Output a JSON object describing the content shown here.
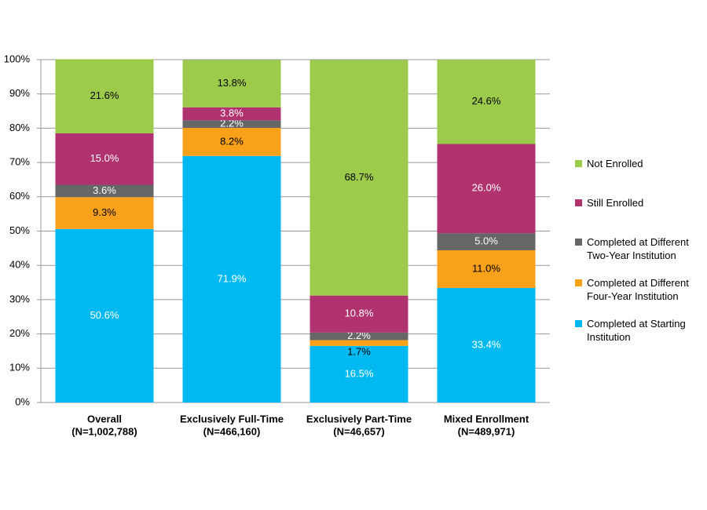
{
  "chart_data": {
    "type": "stacked_bar",
    "categories": [
      [
        "Overall",
        "(N=1,002,788)"
      ],
      [
        "Exclusively Full-Time",
        "(N=466,160)"
      ],
      [
        "Exclusively Part-Time",
        "(N=46,657)"
      ],
      [
        "Mixed Enrollment",
        "(N=489,971)"
      ]
    ],
    "series": [
      {
        "name": "Completed at Starting Institution",
        "color": "#00b9f1",
        "label_color": "#ffffff",
        "values": [
          50.6,
          71.9,
          16.5,
          33.4
        ],
        "value_labels": [
          "50.6%",
          "71.9%",
          "16.5%",
          "33.4%"
        ]
      },
      {
        "name": "Completed at Different Four-Year Institution",
        "color": "#f9a11b",
        "label_color": "#000000",
        "values": [
          9.3,
          8.2,
          1.7,
          11.0
        ],
        "value_labels": [
          "9.3%",
          "8.2%",
          "1.7%",
          "11.0%"
        ]
      },
      {
        "name": "Completed at Different Two-Year Institution",
        "color": "#666666",
        "label_color": "#ffffff",
        "values": [
          3.6,
          2.2,
          2.2,
          5.0
        ],
        "value_labels": [
          "3.6%",
          "2.2%",
          "2.2%",
          "5.0%"
        ]
      },
      {
        "name": "Still Enrolled",
        "color": "#b0336f",
        "label_color": "#ffffff",
        "values": [
          15.0,
          3.8,
          10.8,
          26.0
        ],
        "value_labels": [
          "15.0%",
          "3.8%",
          "10.8%",
          "26.0%"
        ]
      },
      {
        "name": "Not Enrolled",
        "color": "#9ccb4c",
        "label_color": "#000000",
        "values": [
          21.6,
          13.8,
          68.7,
          24.6
        ],
        "value_labels": [
          "21.6%",
          "13.8%",
          "68.7%",
          "24.6%"
        ]
      }
    ],
    "ylim": [
      0,
      100
    ],
    "yticks": [
      {
        "value": 0,
        "label": "0%"
      },
      {
        "value": 10,
        "label": "10%"
      },
      {
        "value": 20,
        "label": "20%"
      },
      {
        "value": 30,
        "label": "30%"
      },
      {
        "value": 40,
        "label": "40%"
      },
      {
        "value": 50,
        "label": "50%"
      },
      {
        "value": 60,
        "label": "60%"
      },
      {
        "value": 70,
        "label": "70%"
      },
      {
        "value": 80,
        "label": "80%"
      },
      {
        "value": 90,
        "label": "90%"
      },
      {
        "value": 100,
        "label": "100%"
      }
    ],
    "grid": true,
    "legend": "right"
  }
}
